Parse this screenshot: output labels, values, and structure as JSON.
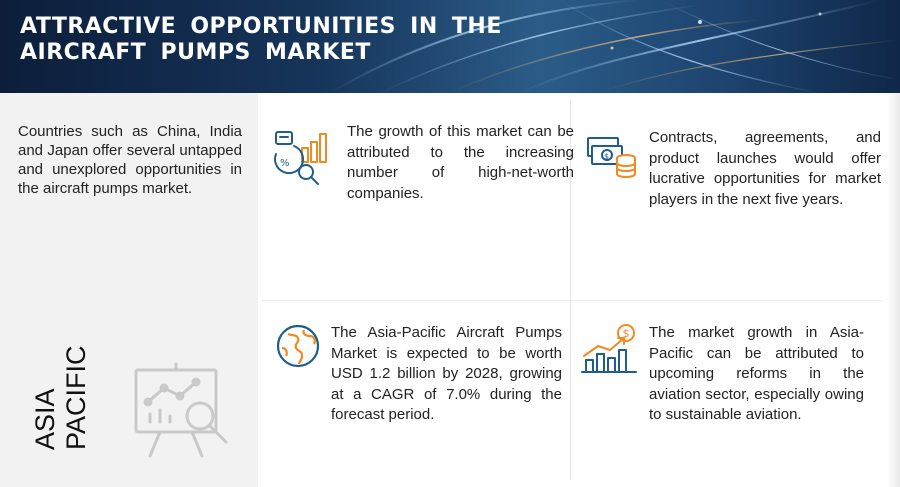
{
  "header": {
    "title": "ATTRACTIVE OPPORTUNITIES IN THE AIRCRAFT PUMPS MARKET"
  },
  "left": {
    "intro": "Countries such as China, India and Japan offer several untapped and unexplored opportunities in the aircraft pumps market.",
    "region_line1": "ASIA",
    "region_line2": "PACIFIC",
    "icon": "presentation-analytics-icon"
  },
  "cards": [
    {
      "icon": "growth-analysis-icon",
      "text": "The growth of this market can be attributed to the increasing number of high-net-worth companies."
    },
    {
      "icon": "money-coins-icon",
      "text": "Contracts, agreements, and product launches would offer lucrative opportunities for market players in the next five years."
    },
    {
      "icon": "globe-icon",
      "text": "The Asia-Pacific Aircraft Pumps Market is expected to be worth USD 1.2 billion by 2028, growing at a CAGR of 7.0% during the forecast period."
    },
    {
      "icon": "rising-chart-dollar-icon",
      "text": "The market growth in Asia-Pacific can be attributed to upcoming reforms in the aviation sector, especially owing to sustainable aviation."
    }
  ],
  "colors": {
    "accent_orange": "#f08a24",
    "accent_blue": "#1f5d8c",
    "banner_dark": "#0c1e3a"
  }
}
